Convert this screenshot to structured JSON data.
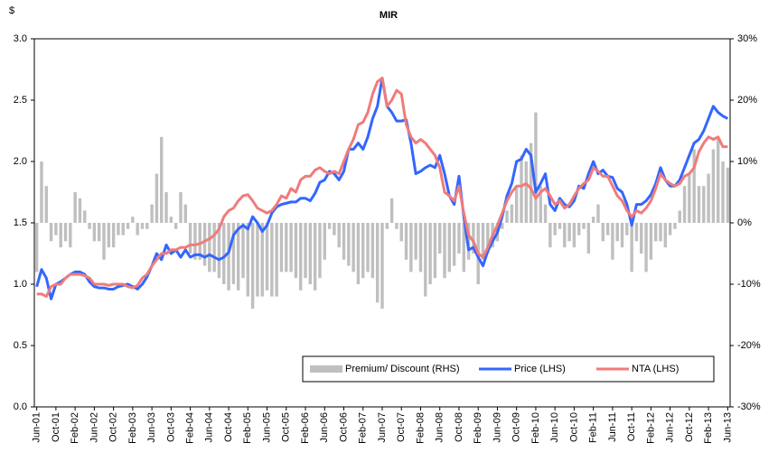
{
  "chart_data": {
    "type": "combo",
    "title": "MIR",
    "y_label": "$",
    "categories": [
      "Jun-01",
      null,
      null,
      null,
      "Oct-01",
      null,
      null,
      null,
      "Feb-02",
      null,
      null,
      null,
      "Jun-02",
      null,
      null,
      null,
      "Oct-02",
      null,
      null,
      null,
      "Feb-03",
      null,
      null,
      null,
      "Jun-03",
      null,
      null,
      null,
      "Oct-03",
      null,
      null,
      null,
      "Feb-04",
      null,
      null,
      null,
      "Jun-04",
      null,
      null,
      null,
      "Oct-04",
      null,
      null,
      null,
      "Feb-05",
      null,
      null,
      null,
      "Jun-05",
      null,
      null,
      null,
      "Oct-05",
      null,
      null,
      null,
      "Feb-06",
      null,
      null,
      null,
      "Jun-06",
      null,
      null,
      null,
      "Oct-06",
      null,
      null,
      null,
      "Feb-07",
      null,
      null,
      null,
      "Jun-07",
      null,
      null,
      null,
      "Oct-07",
      null,
      null,
      null,
      "Feb-08",
      null,
      null,
      null,
      "Jun-08",
      null,
      null,
      null,
      "Oct-08",
      null,
      null,
      null,
      "Feb-09",
      null,
      null,
      null,
      "Jun-09",
      null,
      null,
      null,
      "Oct-09",
      null,
      null,
      null,
      "Feb-10",
      null,
      null,
      null,
      "Jun-10",
      null,
      null,
      null,
      "Oct-10",
      null,
      null,
      null,
      "Feb-11",
      null,
      null,
      null,
      "Jun-11",
      null,
      null,
      null,
      "Oct-11",
      null,
      null,
      null,
      "Feb-12",
      null,
      null,
      null,
      "Jun-12",
      null,
      null,
      null,
      "Oct-12",
      null,
      null,
      null,
      "Feb-13",
      null,
      null,
      null,
      "Jun-13"
    ],
    "ylim": [
      0,
      3
    ],
    "yticks": [
      {
        "value": 0,
        "label": "0.0"
      },
      {
        "value": 0.5,
        "label": "0.5"
      },
      {
        "value": 1,
        "label": "1.0"
      },
      {
        "value": 1.5,
        "label": "1.5"
      },
      {
        "value": 2,
        "label": "2.0"
      },
      {
        "value": 2.5,
        "label": "2.5"
      },
      {
        "value": 3,
        "label": "3.0"
      }
    ],
    "y2lim": [
      -30,
      30
    ],
    "y2ticks": [
      {
        "value": -30,
        "label": "-30%"
      },
      {
        "value": -20,
        "label": "-20%"
      },
      {
        "value": -10,
        "label": "-10%"
      },
      {
        "value": 0,
        "label": "0%"
      },
      {
        "value": 10,
        "label": "10%"
      },
      {
        "value": 20,
        "label": "20%"
      },
      {
        "value": 30,
        "label": "30%"
      }
    ],
    "grid": false,
    "legend": "bottom-right",
    "series": [
      {
        "name": "Premium/ Discount (RHS)",
        "type": "bar",
        "axis": "y2",
        "color": "#bfbfbf",
        "values": [
          -8,
          10,
          6,
          -3,
          -2,
          -4,
          -3,
          -4,
          5,
          4,
          2,
          -1,
          -3,
          -3,
          -6,
          -4,
          -4,
          -2,
          -2,
          -1,
          1,
          -2,
          -1,
          -1,
          3,
          8,
          14,
          5,
          1,
          -1,
          5,
          3,
          -5,
          -6,
          -6,
          -7,
          -8,
          -8,
          -9,
          -10,
          -11,
          -10,
          -11,
          -9,
          -12,
          -14,
          -12,
          -12,
          -11,
          -12,
          -12,
          -8,
          -8,
          -8,
          -9,
          -11,
          -9,
          -10,
          -11,
          -9,
          -6,
          -1,
          -2,
          -4,
          -6,
          -7,
          -8,
          -10,
          -9,
          -8,
          -9,
          -13,
          -14,
          -1,
          4,
          -1,
          -3,
          -6,
          -8,
          -6,
          -8,
          -12,
          -10,
          -9,
          -5,
          -9,
          -8,
          -7,
          -5,
          -8,
          -6,
          -5,
          -10,
          -6,
          -5,
          -4,
          -3,
          -1,
          2,
          3,
          6,
          11,
          10,
          13,
          18,
          6,
          3,
          -4,
          -2,
          -1,
          -4,
          -3,
          -4,
          -2,
          -1,
          -5,
          1,
          3,
          -3,
          -2,
          -6,
          -3,
          -4,
          -2,
          -8,
          -3,
          -5,
          -8,
          -6,
          -3,
          -3,
          -4,
          -2,
          -1,
          2,
          6,
          8,
          12,
          6,
          6,
          8,
          12,
          14,
          10,
          9
        ]
      },
      {
        "name": "Price (LHS)",
        "type": "line",
        "axis": "y",
        "color": "#3366ff",
        "values": [
          0.98,
          1.12,
          1.05,
          0.88,
          1.0,
          1.02,
          1.05,
          1.08,
          1.1,
          1.1,
          1.08,
          1.02,
          0.98,
          0.97,
          0.97,
          0.96,
          0.96,
          0.98,
          0.99,
          1.0,
          0.98,
          0.96,
          1.0,
          1.06,
          1.15,
          1.25,
          1.2,
          1.32,
          1.25,
          1.28,
          1.22,
          1.28,
          1.22,
          1.24,
          1.24,
          1.22,
          1.24,
          1.22,
          1.2,
          1.22,
          1.26,
          1.4,
          1.45,
          1.48,
          1.45,
          1.55,
          1.5,
          1.43,
          1.48,
          1.58,
          1.63,
          1.65,
          1.66,
          1.67,
          1.67,
          1.7,
          1.7,
          1.68,
          1.74,
          1.83,
          1.85,
          1.92,
          1.9,
          1.85,
          1.92,
          2.1,
          2.1,
          2.15,
          2.1,
          2.2,
          2.35,
          2.45,
          2.68,
          2.45,
          2.4,
          2.33,
          2.33,
          2.34,
          2.15,
          1.9,
          1.92,
          1.95,
          1.97,
          1.95,
          2.05,
          1.9,
          1.72,
          1.65,
          1.88,
          1.55,
          1.28,
          1.3,
          1.22,
          1.15,
          1.27,
          1.35,
          1.42,
          1.55,
          1.72,
          1.82,
          2.0,
          2.02,
          2.1,
          2.05,
          1.75,
          1.82,
          1.9,
          1.65,
          1.6,
          1.7,
          1.65,
          1.63,
          1.68,
          1.8,
          1.78,
          1.9,
          2.0,
          1.9,
          1.93,
          1.88,
          1.87,
          1.78,
          1.75,
          1.65,
          1.48,
          1.65,
          1.65,
          1.68,
          1.73,
          1.82,
          1.95,
          1.85,
          1.8,
          1.8,
          1.85,
          1.95,
          2.05,
          2.15,
          2.18,
          2.25,
          2.35,
          2.45,
          2.4,
          2.37,
          2.35
        ]
      },
      {
        "name": "NTA (LHS)",
        "type": "line",
        "axis": "y",
        "color": "#f07b7b",
        "values": [
          0.92,
          0.92,
          0.9,
          0.98,
          1.0,
          1.0,
          1.05,
          1.08,
          1.08,
          1.08,
          1.07,
          1.05,
          1.0,
          1.0,
          1.0,
          0.99,
          1.0,
          1.0,
          1.0,
          0.98,
          0.97,
          0.99,
          1.05,
          1.08,
          1.15,
          1.2,
          1.25,
          1.25,
          1.28,
          1.28,
          1.3,
          1.3,
          1.32,
          1.32,
          1.33,
          1.35,
          1.37,
          1.4,
          1.45,
          1.55,
          1.6,
          1.62,
          1.68,
          1.72,
          1.73,
          1.68,
          1.62,
          1.6,
          1.58,
          1.6,
          1.65,
          1.72,
          1.7,
          1.78,
          1.75,
          1.85,
          1.88,
          1.88,
          1.93,
          1.95,
          1.92,
          1.9,
          1.92,
          1.9,
          2.0,
          2.1,
          2.18,
          2.3,
          2.32,
          2.4,
          2.55,
          2.65,
          2.68,
          2.45,
          2.5,
          2.58,
          2.55,
          2.3,
          2.2,
          2.15,
          2.18,
          2.15,
          2.1,
          2.05,
          1.95,
          1.75,
          1.72,
          1.68,
          1.8,
          1.58,
          1.4,
          1.35,
          1.25,
          1.22,
          1.3,
          1.4,
          1.48,
          1.58,
          1.68,
          1.75,
          1.8,
          1.8,
          1.82,
          1.78,
          1.7,
          1.75,
          1.78,
          1.72,
          1.65,
          1.68,
          1.62,
          1.65,
          1.72,
          1.78,
          1.82,
          1.85,
          1.95,
          1.92,
          1.88,
          1.88,
          1.8,
          1.72,
          1.68,
          1.6,
          1.55,
          1.6,
          1.58,
          1.62,
          1.68,
          1.78,
          1.9,
          1.85,
          1.82,
          1.8,
          1.82,
          1.88,
          1.9,
          1.95,
          2.08,
          2.15,
          2.2,
          2.18,
          2.2,
          2.12,
          2.12
        ]
      }
    ]
  }
}
